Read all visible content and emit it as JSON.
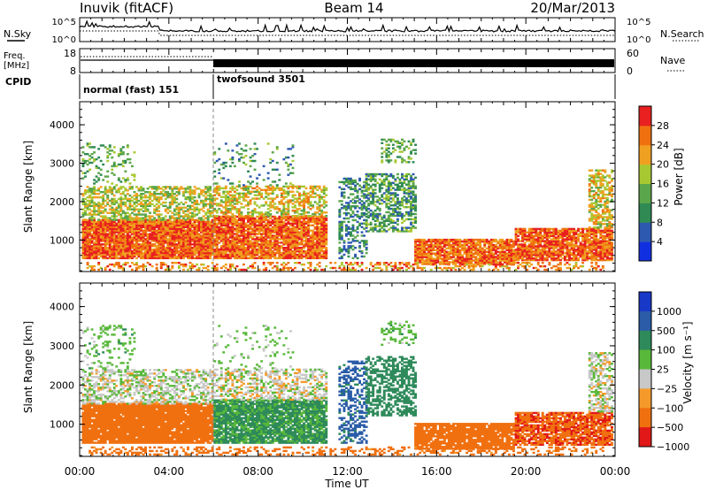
{
  "header": {
    "station": "Inuvik (fitACF)",
    "beam": "Beam 14",
    "date": "20/Mar/2013"
  },
  "noise_panel": {
    "left_label": "N.Sky",
    "right_label": "N.Search",
    "ticks_left": [
      "10^5",
      "10^0"
    ],
    "ticks_right": [
      "10^5",
      "10^0"
    ]
  },
  "freq_panel": {
    "left_label_1": "Freq.",
    "left_label_2": "[MHz]",
    "ticks_left": [
      "18",
      "8"
    ],
    "right_label": "Nave",
    "ticks_right": [
      "60",
      "0"
    ]
  },
  "cpid_panel": {
    "label": "CPID",
    "modes": [
      {
        "name": "normal (fast) 151",
        "start_hour": 0
      },
      {
        "name": "twofsound 3501",
        "start_hour": 6
      }
    ]
  },
  "colors": {
    "power_scale": [
      "#1030e0",
      "#2e59b0",
      "#2f8a53",
      "#5aa64a",
      "#a8c832",
      "#f0a020",
      "#f07010",
      "#e82020"
    ],
    "velocity_scale": [
      "#1838c8",
      "#2a5ca8",
      "#2e8a5a",
      "#58b83a",
      "#c8c8c8",
      "#f59a2a",
      "#f07010",
      "#e01818"
    ]
  },
  "chart_data": [
    {
      "type": "heatmap",
      "name": "power",
      "ylabel": "Slant Range [km]",
      "ylim": [
        180,
        4600
      ],
      "yticks": [
        1000,
        2000,
        3000,
        4000
      ],
      "xlim": [
        0,
        24
      ],
      "colorbar_label": "Power [dB]",
      "colorbar_ticks": [
        "28",
        "24",
        "20",
        "16",
        "12",
        "8",
        "4"
      ],
      "colorbar_range": [
        0,
        32
      ]
    },
    {
      "type": "heatmap",
      "name": "velocity",
      "ylabel": "Slant Range [km]",
      "ylim": [
        180,
        4600
      ],
      "yticks": [
        1000,
        2000,
        3000,
        4000
      ],
      "xlim": [
        0,
        24
      ],
      "colorbar_label": "Velocity [m s⁻¹]",
      "colorbar_ticks": [
        "1000",
        "500",
        "100",
        "25",
        "−25",
        "−100",
        "−500",
        "−1000"
      ]
    }
  ],
  "x_axis": {
    "label": "Time UT",
    "ticks": [
      "00:00",
      "04:00",
      "08:00",
      "12:00",
      "16:00",
      "20:00",
      "00:00"
    ]
  }
}
